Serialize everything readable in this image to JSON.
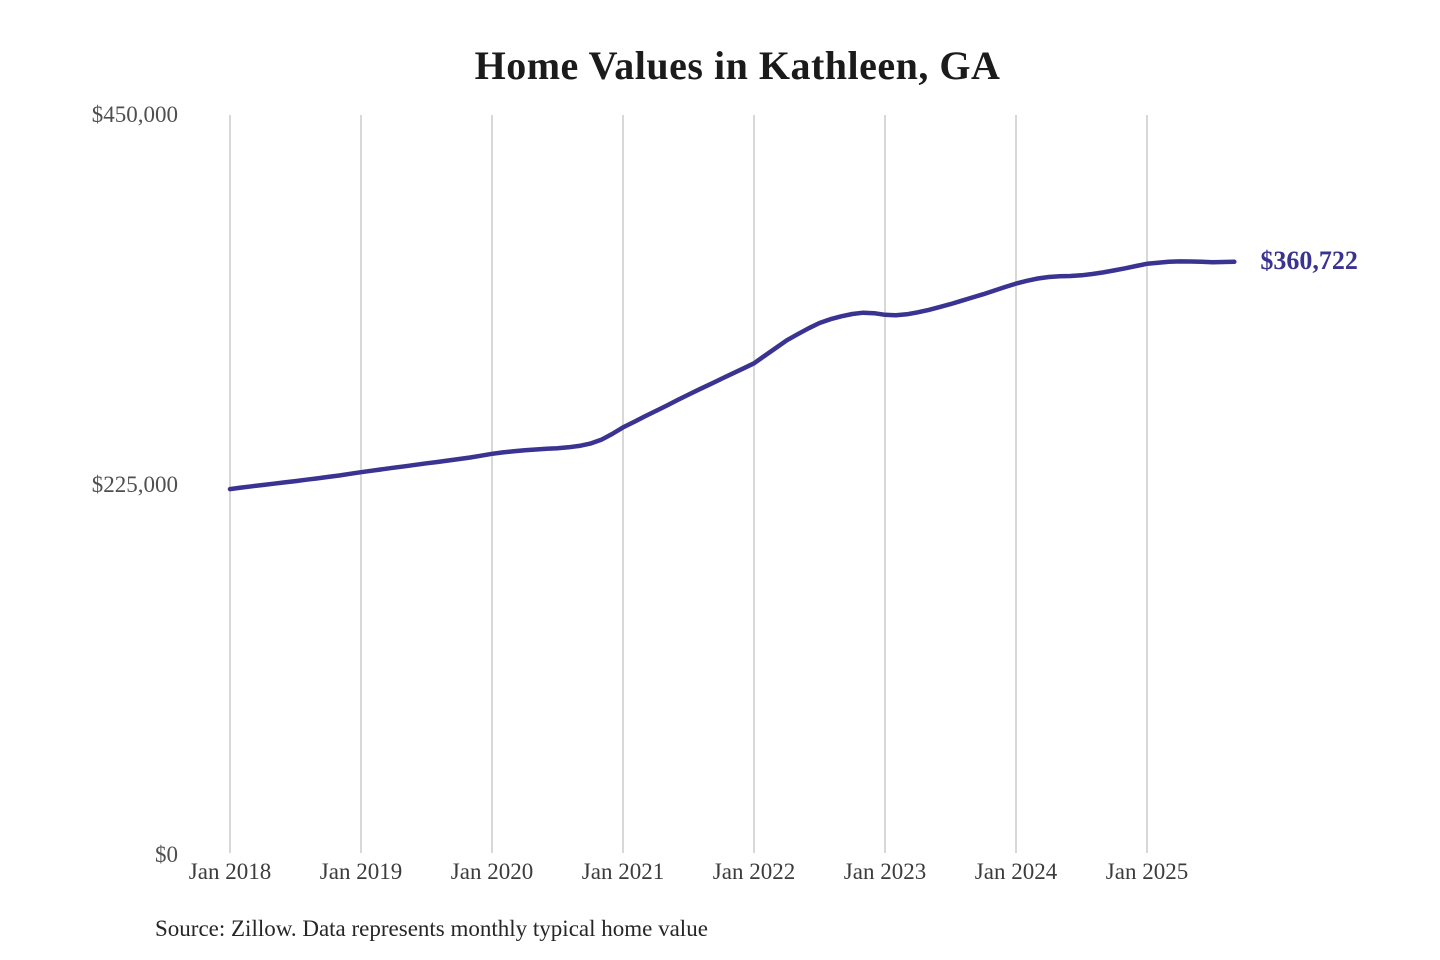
{
  "title": "Home Values in Kathleen, GA",
  "source_note": "Source: Zillow. Data represents monthly typical home value",
  "end_label": "$360,722",
  "colors": {
    "line": "#3a3392",
    "grid": "#cccccc",
    "title_text": "#1b1b1b",
    "y_tick_text": "#4f4f4f",
    "x_tick_text": "#3c3c3c",
    "source_text": "#262626"
  },
  "chart_data": {
    "type": "line",
    "title": "Home Values in Kathleen, GA",
    "xlabel": "",
    "ylabel": "",
    "ylim": [
      0,
      450000
    ],
    "grid": "vertical-only",
    "legend": "none",
    "y_tick_labels": [
      "$0",
      "$225,000",
      "$450,000"
    ],
    "y_tick_values": [
      0,
      225000,
      450000
    ],
    "x_tick_labels": [
      "Jan 2018",
      "Jan 2019",
      "Jan 2020",
      "Jan 2021",
      "Jan 2022",
      "Jan 2023",
      "Jan 2024",
      "Jan 2025"
    ],
    "annotation": {
      "text": "$360,722",
      "attached_to": "last-point"
    },
    "series": [
      {
        "name": "Monthly typical home value (USD)",
        "start_month": "2018-01",
        "end_month": "2025-09",
        "frequency": "monthly",
        "final_value": 360722,
        "values": [
          222500,
          223400,
          224200,
          225000,
          225800,
          226600,
          227400,
          228200,
          229000,
          229900,
          230800,
          231800,
          232800,
          233700,
          234600,
          235500,
          236400,
          237300,
          238200,
          239000,
          239900,
          240800,
          241700,
          242800,
          244000,
          244800,
          245500,
          246100,
          246600,
          247000,
          247400,
          247900,
          248800,
          250200,
          252500,
          256000,
          260000,
          263300,
          266700,
          270000,
          273300,
          276700,
          280000,
          283200,
          286300,
          289500,
          292700,
          295800,
          299000,
          303700,
          308300,
          313000,
          316700,
          320300,
          323500,
          325800,
          327600,
          329000,
          329800,
          329500,
          328500,
          328200,
          328800,
          330000,
          331500,
          333200,
          335000,
          337000,
          339000,
          341000,
          343200,
          345400,
          347500,
          349200,
          350600,
          351500,
          351900,
          352100,
          352500,
          353300,
          354300,
          355500,
          356800,
          358200,
          359500,
          360200,
          360700,
          361000,
          360900,
          360700,
          360500,
          360600,
          360722
        ]
      }
    ]
  }
}
